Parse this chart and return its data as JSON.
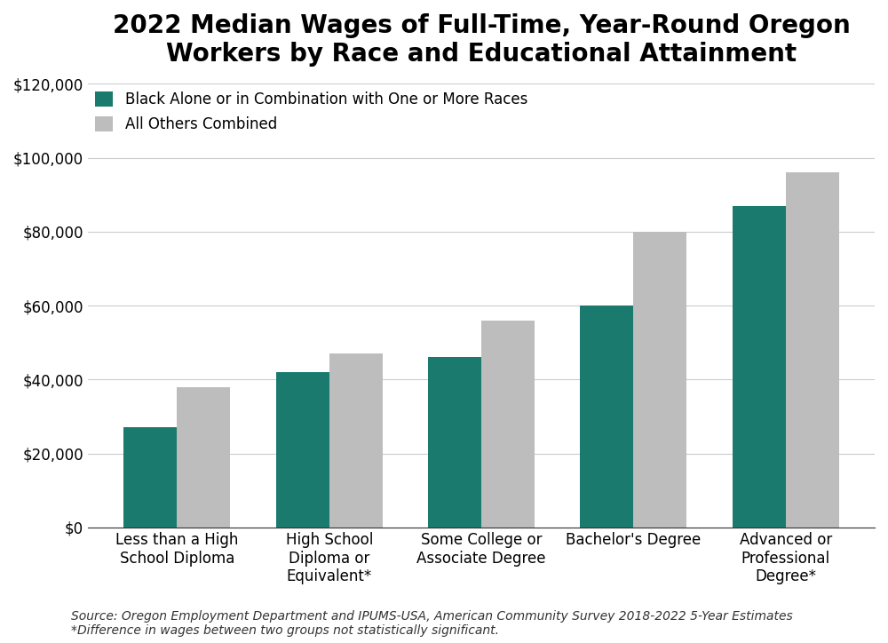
{
  "title": "2022 Median Wages of Full-Time, Year-Round Oregon\nWorkers by Race and Educational Attainment",
  "categories": [
    "Less than a High\nSchool Diploma",
    "High School\nDiploma or\nEquivalent*",
    "Some College or\nAssociate Degree",
    "Bachelor's Degree",
    "Advanced or\nProfessional\nDegree*"
  ],
  "black_values": [
    27000,
    42000,
    46000,
    60000,
    87000
  ],
  "others_values": [
    38000,
    47000,
    56000,
    80000,
    96000
  ],
  "black_color": "#1a7a6e",
  "others_color": "#bdbdbd",
  "black_label": "Black Alone or in Combination with One or More Races",
  "others_label": "All Others Combined",
  "ylim": [
    0,
    120000
  ],
  "yticks": [
    0,
    20000,
    40000,
    60000,
    80000,
    100000,
    120000
  ],
  "ylabel": "",
  "source_text": "Source: Oregon Employment Department and IPUMS-USA, American Community Survey 2018-2022 5-Year Estimates\n*Difference in wages between two groups not statistically significant.",
  "background_color": "#ffffff",
  "bar_width": 0.35,
  "title_fontsize": 20,
  "tick_fontsize": 12,
  "legend_fontsize": 12,
  "source_fontsize": 10
}
